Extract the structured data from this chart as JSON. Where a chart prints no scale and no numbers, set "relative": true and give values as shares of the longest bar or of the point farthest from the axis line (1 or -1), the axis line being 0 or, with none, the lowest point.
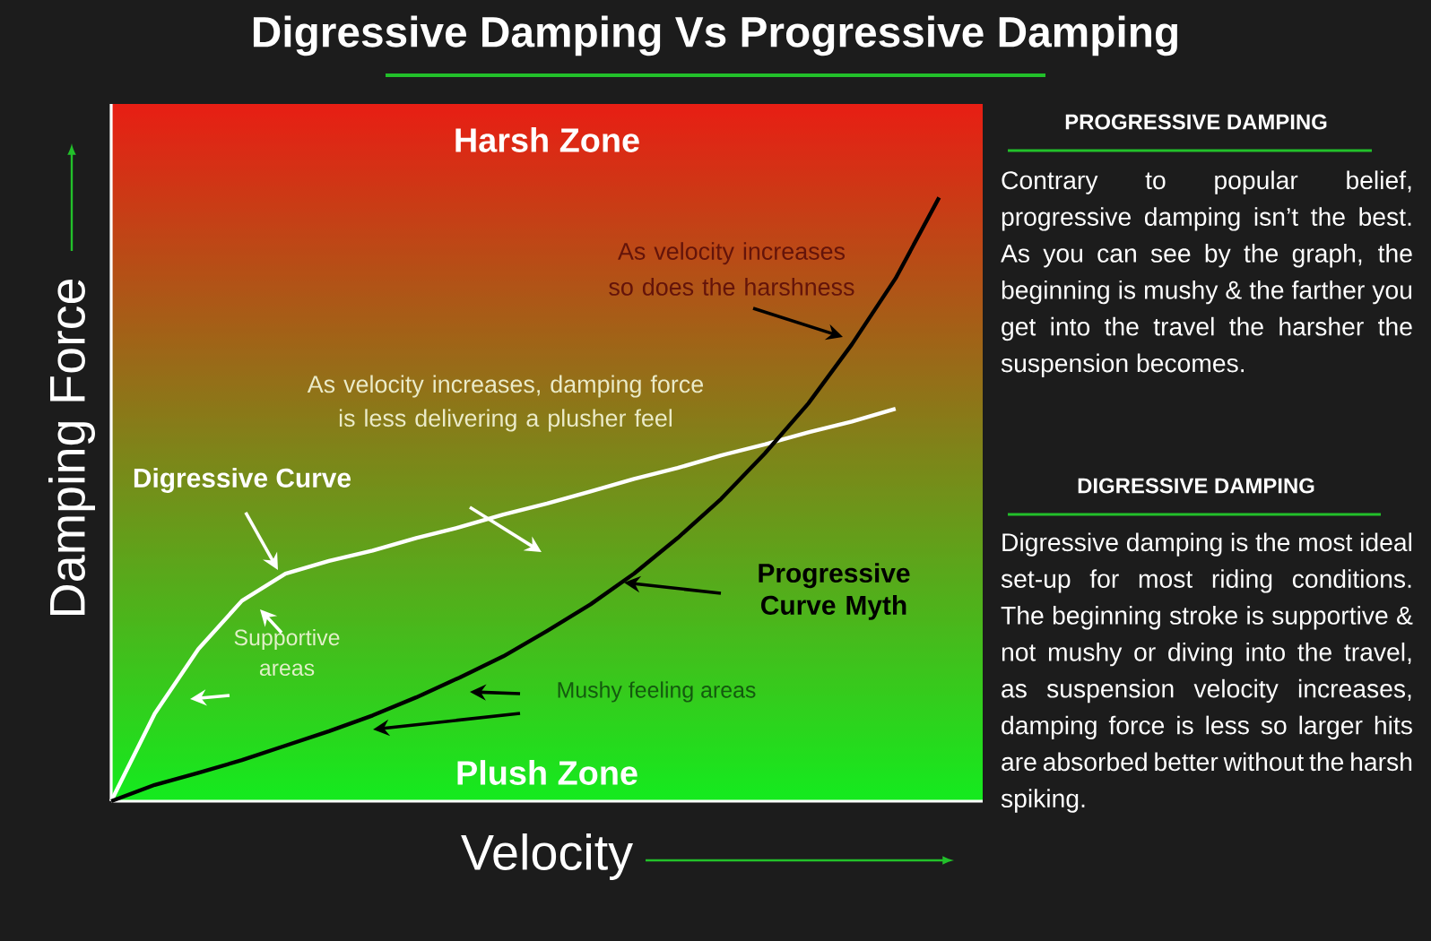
{
  "chart_data": {
    "type": "line",
    "relative": true,
    "title": "Digressive Damping Vs Progressive Damping",
    "xlabel": "Velocity",
    "ylabel": "Damping Force",
    "categories": [
      null,
      null,
      null,
      null,
      null,
      null,
      null,
      null,
      null,
      null,
      null,
      null,
      null,
      null,
      null,
      null,
      null,
      null,
      null,
      null
    ],
    "series": [
      {
        "name": "Digressive Curve",
        "color": "#ffffff",
        "values": [
          0,
          0.145,
          0.252,
          0.332,
          0.377,
          0.398,
          0.415,
          0.436,
          0.454,
          0.475,
          0.493,
          0.513,
          0.534,
          0.552,
          0.573,
          0.591,
          0.611,
          0.629,
          0.65,
          null
        ]
      },
      {
        "name": "Progressive Curve Myth",
        "color": "#000000",
        "values": [
          0,
          0.027,
          0.047,
          0.068,
          0.092,
          0.116,
          0.142,
          0.172,
          0.205,
          0.24,
          0.282,
          0.326,
          0.377,
          0.436,
          0.501,
          0.576,
          0.659,
          0.757,
          0.866,
          1.0
        ]
      }
    ],
    "annotations": [
      "Harsh Zone",
      "Plush Zone",
      "As velocity increases so does the harshness",
      "As velocity increases, damping force is less delivering a plusher feel",
      "Supportive areas",
      "Mushy feeling areas",
      "PROGRESSIVE DAMPING",
      "Contrary to popular belief, progressive damping isn’t the best. As you can see by the graph, the beginning is mushy & the farther you get into the travel the harsher the suspension becomes.",
      "DIGRESSIVE DAMPING",
      "Digressive damping is the most ideal set-up for most riding conditions. The beginning stroke is supportive & not mushy or diving into the travel, as suspension velocity increases, damping force is less so larger hits are absorbed better without the harsh spiking."
    ]
  }
}
